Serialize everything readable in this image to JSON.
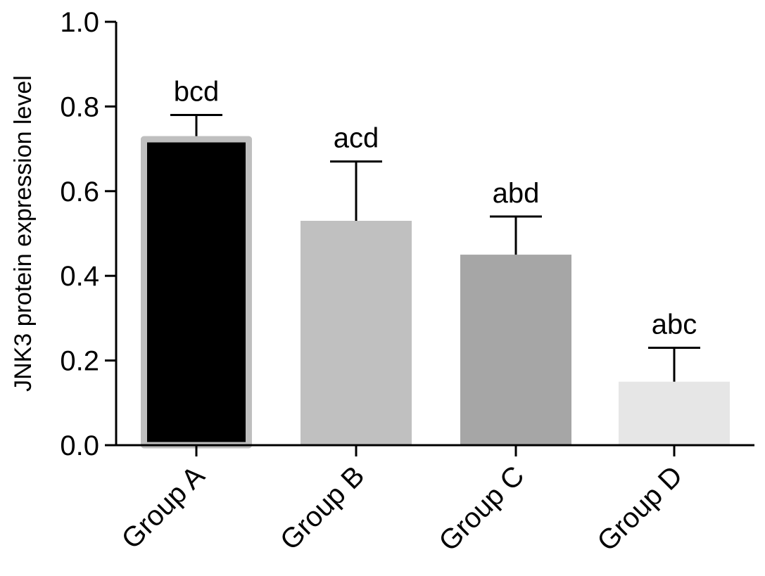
{
  "chart_data": {
    "type": "bar",
    "title": "",
    "xlabel": "",
    "ylabel": "JNK3 protein expression level",
    "ylim": [
      0,
      1.0
    ],
    "yticks": [
      0.0,
      0.2,
      0.4,
      0.6,
      0.8,
      1.0
    ],
    "ytick_labels": [
      "0.0",
      "0.2",
      "0.4",
      "0.6",
      "0.8",
      "1.0"
    ],
    "grid": false,
    "categories": [
      "Group A",
      "Group B",
      "Group C",
      "Group D"
    ],
    "values": [
      0.73,
      0.53,
      0.45,
      0.15
    ],
    "error_upper": [
      0.78,
      0.67,
      0.54,
      0.23
    ],
    "annotations": [
      "bcd",
      "acd",
      "abd",
      "abc"
    ],
    "colors": [
      "#000000",
      "#c0c0c0",
      "#a6a6a6",
      "#e6e6e6"
    ],
    "edge_colors": [
      "#bfbfbf",
      "#c0c0c0",
      "#a6a6a6",
      "#e6e6e6"
    ]
  }
}
